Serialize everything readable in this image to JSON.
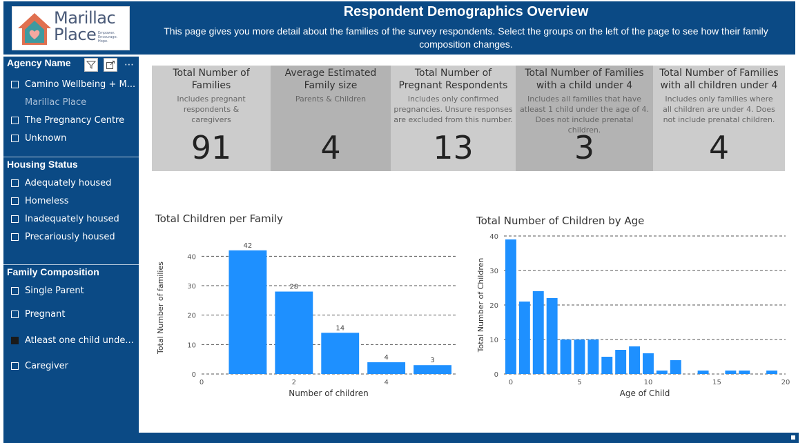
{
  "header": {
    "title": "Respondent Demographics Overview",
    "subtitle": "This page gives you more detail about the families of the survey respondents. Select the groups on the left of the page to see how their family composition changes."
  },
  "logo": {
    "line1": "Marillac",
    "line2": "Place",
    "tagline": "Empower. Encourage. Hope."
  },
  "colors": {
    "header_bg": "#0b4a85",
    "bar": "#1e90ff",
    "card_light": "#cccccc",
    "card_dark": "#b3b3b3"
  },
  "filters": {
    "agency": {
      "title": "Agency Name",
      "items": [
        {
          "label": "Camino Wellbeing + M...",
          "checked": false,
          "disabled": false
        },
        {
          "label": "Marillac Place",
          "checked": false,
          "disabled": true
        },
        {
          "label": "The Pregnancy Centre",
          "checked": false,
          "disabled": false
        },
        {
          "label": "Unknown",
          "checked": false,
          "disabled": false
        }
      ]
    },
    "housing": {
      "title": "Housing Status",
      "items": [
        {
          "label": "Adequately housed",
          "checked": false
        },
        {
          "label": "Homeless",
          "checked": false
        },
        {
          "label": "Inadequately housed",
          "checked": false
        },
        {
          "label": "Precariously housed",
          "checked": false
        }
      ]
    },
    "family": {
      "title": "Family Composition",
      "items": [
        {
          "label": "Single Parent",
          "checked": false
        },
        {
          "label": "Pregnant",
          "checked": false
        },
        {
          "label": "Atleast one child unde...",
          "checked": true
        },
        {
          "label": "Caregiver",
          "checked": false
        }
      ]
    }
  },
  "cards": [
    {
      "title": "Total Number of Families",
      "subtitle": "Includes pregnant respondents & caregivers",
      "value": "91"
    },
    {
      "title": "Average Estimated Family size",
      "subtitle": "Parents & Children",
      "value": "4"
    },
    {
      "title": "Total Number of Pregnant Respondents",
      "subtitle": "Includes only confirmed pregnancies. Unsure responses are excluded from this number.",
      "value": "13"
    },
    {
      "title": "Total Number of Families with a child under 4",
      "subtitle": "Includes all families that have atleast 1 child under the age of 4. Does not include prenatal children.",
      "value": "3"
    },
    {
      "title": "Total Number of Families with all children under 4",
      "subtitle": "Includes only families where all children are under 4. Does not include prenatal children.",
      "value": "4"
    }
  ],
  "chart_data": [
    {
      "type": "bar",
      "title": "Total Children per Family",
      "xlabel": "Number of children",
      "ylabel": "Total Number of families",
      "x": [
        1,
        2,
        3,
        4,
        5
      ],
      "values": [
        42,
        28,
        14,
        4,
        3
      ],
      "data_labels": [
        "42",
        "28",
        "14",
        "4",
        "3"
      ],
      "xlim": [
        0,
        5.5
      ],
      "ylim": [
        0,
        45
      ],
      "xticks": [
        0,
        2,
        4
      ],
      "yticks": [
        0,
        10,
        20,
        30,
        40
      ],
      "grid": true
    },
    {
      "type": "bar",
      "title": "Total Number of Children by Age",
      "xlabel": "Age of Child",
      "ylabel": "Total Number of Children",
      "x": [
        0,
        1,
        2,
        3,
        4,
        5,
        6,
        7,
        8,
        9,
        10,
        11,
        12,
        13,
        14,
        15,
        16,
        17,
        18,
        19
      ],
      "values": [
        39,
        21,
        24,
        22,
        10,
        10,
        10,
        5,
        7,
        8,
        6,
        1,
        4,
        0,
        1,
        0,
        1,
        1,
        0,
        1
      ],
      "xlim": [
        -0.5,
        20
      ],
      "ylim": [
        0,
        40
      ],
      "xticks": [
        0,
        5,
        10,
        15,
        20
      ],
      "yticks": [
        0,
        10,
        20,
        30,
        40
      ],
      "grid": true
    }
  ]
}
